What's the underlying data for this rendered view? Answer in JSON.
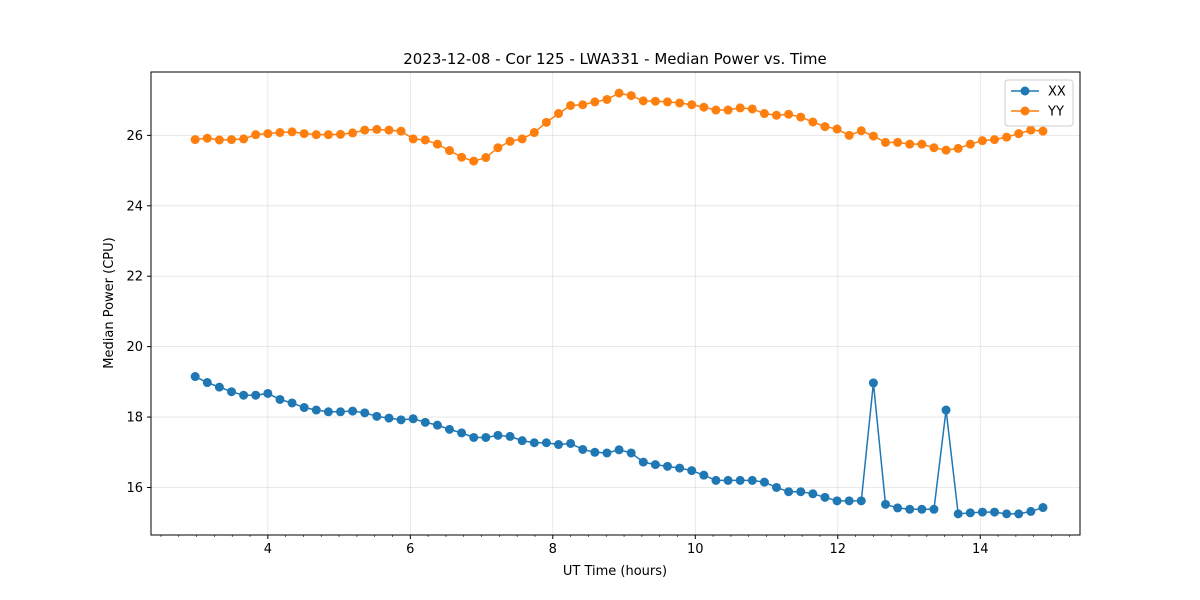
{
  "chart_data": {
    "type": "line",
    "title": "2023-12-08 - Cor 125 - LWA331 - Median Power vs. Time",
    "xlabel": "UT Time (hours)",
    "ylabel": "Median Power (CPU)",
    "xlim": [
      2.36,
      15.4
    ],
    "ylim": [
      14.65,
      27.8
    ],
    "xticks": [
      4,
      6,
      8,
      10,
      12,
      14
    ],
    "xtick_labels": [
      "4",
      "6",
      "8",
      "10",
      "12",
      "14"
    ],
    "yticks": [
      16,
      18,
      20,
      22,
      24,
      26
    ],
    "ytick_labels": [
      "16",
      "18",
      "20",
      "22",
      "24",
      "26"
    ],
    "grid": true,
    "legend_position": "top-right",
    "x": [
      2.98,
      3.15,
      3.32,
      3.49,
      3.66,
      3.83,
      4.0,
      4.17,
      4.34,
      4.51,
      4.68,
      4.85,
      5.02,
      5.19,
      5.36,
      5.53,
      5.7,
      5.87,
      6.04,
      6.21,
      6.38,
      6.55,
      6.72,
      6.89,
      7.06,
      7.23,
      7.4,
      7.57,
      7.74,
      7.91,
      8.08,
      8.25,
      8.42,
      8.59,
      8.76,
      8.93,
      9.1,
      9.27,
      9.44,
      9.61,
      9.78,
      9.95,
      10.12,
      10.29,
      10.46,
      10.63,
      10.8,
      10.97,
      11.14,
      11.31,
      11.48,
      11.65,
      11.82,
      11.99,
      12.16,
      12.33,
      12.5,
      12.67,
      12.84,
      13.01,
      13.18,
      13.35,
      13.52,
      13.69,
      13.86,
      14.03,
      14.2,
      14.37,
      14.54,
      14.71,
      14.88
    ],
    "series": [
      {
        "name": "XX",
        "color": "#1f77b4",
        "values": [
          19.15,
          18.98,
          18.85,
          18.72,
          18.62,
          18.62,
          18.67,
          18.5,
          18.4,
          18.27,
          18.2,
          18.15,
          18.15,
          18.17,
          18.12,
          18.02,
          17.97,
          17.92,
          17.95,
          17.85,
          17.77,
          17.65,
          17.55,
          17.42,
          17.42,
          17.48,
          17.45,
          17.33,
          17.27,
          17.27,
          17.22,
          17.25,
          17.08,
          17.0,
          16.98,
          17.07,
          16.98,
          16.72,
          16.65,
          16.6,
          16.55,
          16.48,
          16.35,
          16.2,
          16.2,
          16.2,
          16.2,
          16.15,
          16.0,
          15.88,
          15.88,
          15.82,
          15.72,
          15.62,
          15.62,
          15.62,
          18.97,
          15.52,
          15.42,
          15.38,
          15.38,
          15.38,
          18.2,
          15.25,
          15.28,
          15.3,
          15.3,
          15.25,
          15.25,
          15.32,
          15.43
        ]
      },
      {
        "name": "YY",
        "color": "#ff7f0e",
        "values": [
          25.88,
          25.92,
          25.87,
          25.88,
          25.9,
          26.02,
          26.05,
          26.08,
          26.1,
          26.05,
          26.02,
          26.02,
          26.03,
          26.07,
          26.15,
          26.17,
          26.15,
          26.12,
          25.9,
          25.87,
          25.75,
          25.57,
          25.38,
          25.27,
          25.37,
          25.65,
          25.83,
          25.9,
          26.08,
          26.37,
          26.62,
          26.85,
          26.87,
          26.95,
          27.02,
          27.2,
          27.13,
          26.98,
          26.97,
          26.95,
          26.92,
          26.87,
          26.8,
          26.72,
          26.72,
          26.78,
          26.75,
          26.62,
          26.57,
          26.6,
          26.52,
          26.38,
          26.25,
          26.18,
          26.0,
          26.13,
          25.98,
          25.8,
          25.8,
          25.75,
          25.75,
          25.65,
          25.58,
          25.63,
          25.75,
          25.85,
          25.88,
          25.95,
          26.05,
          26.15,
          26.12
        ]
      }
    ]
  }
}
